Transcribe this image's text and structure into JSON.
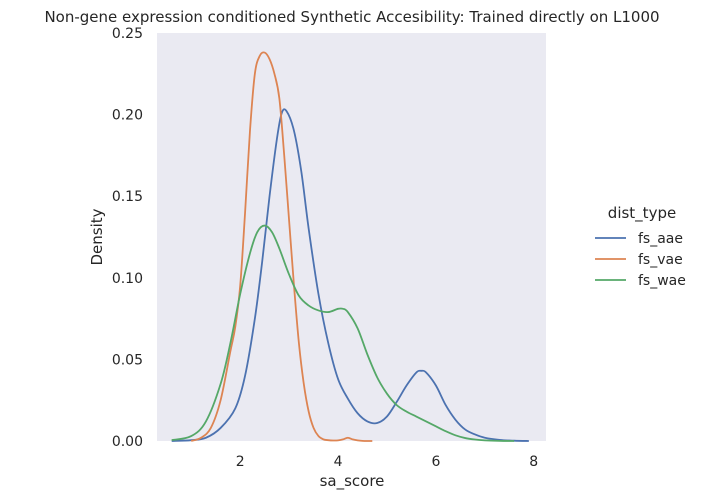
{
  "chart_data": {
    "type": "line",
    "title": "Non-gene expression conditioned Synthetic Accesibility: Trained directly on L1000",
    "xlabel": "sa_score",
    "ylabel": "Density",
    "xlim": [
      0.3,
      8.25
    ],
    "ylim": [
      0.0,
      0.25
    ],
    "xticks": [
      2,
      4,
      6,
      8
    ],
    "yticks": [
      0.0,
      0.05,
      0.1,
      0.15,
      0.2,
      0.25
    ],
    "ytick_labels": [
      "0.00",
      "0.05",
      "0.10",
      "0.15",
      "0.20",
      "0.25"
    ],
    "grid": false,
    "background": "#eaeaf2",
    "legend": {
      "title": "dist_type",
      "placement": "right-outside"
    },
    "series": [
      {
        "name": "fs_aae",
        "color": "#4c72b0",
        "x": [
          0.6,
          1.0,
          1.3,
          1.6,
          1.9,
          2.1,
          2.3,
          2.45,
          2.6,
          2.75,
          2.85,
          2.95,
          3.1,
          3.25,
          3.4,
          3.6,
          3.8,
          4.0,
          4.2,
          4.4,
          4.6,
          4.8,
          5.0,
          5.2,
          5.4,
          5.6,
          5.7,
          5.8,
          6.0,
          6.2,
          6.4,
          6.6,
          6.8,
          7.0,
          7.3,
          7.6,
          7.9
        ],
        "y": [
          0.0,
          0.0005,
          0.002,
          0.008,
          0.02,
          0.04,
          0.075,
          0.11,
          0.15,
          0.185,
          0.201,
          0.202,
          0.19,
          0.165,
          0.13,
          0.09,
          0.06,
          0.038,
          0.026,
          0.017,
          0.012,
          0.011,
          0.015,
          0.024,
          0.034,
          0.042,
          0.043,
          0.042,
          0.034,
          0.022,
          0.013,
          0.007,
          0.004,
          0.002,
          0.0007,
          0.0002,
          0.0
        ]
      },
      {
        "name": "fs_vae",
        "color": "#dd8452",
        "x": [
          1.0,
          1.2,
          1.4,
          1.6,
          1.8,
          1.9,
          2.0,
          2.1,
          2.2,
          2.3,
          2.4,
          2.5,
          2.6,
          2.7,
          2.8,
          2.9,
          3.0,
          3.1,
          3.2,
          3.3,
          3.4,
          3.5,
          3.6,
          3.7,
          3.8,
          3.9,
          4.0,
          4.1,
          4.2,
          4.3,
          4.4,
          4.5,
          4.6,
          4.7
        ],
        "y": [
          0.0,
          0.002,
          0.008,
          0.025,
          0.055,
          0.07,
          0.095,
          0.14,
          0.19,
          0.225,
          0.236,
          0.238,
          0.234,
          0.225,
          0.21,
          0.175,
          0.135,
          0.095,
          0.06,
          0.035,
          0.018,
          0.008,
          0.003,
          0.001,
          0.0005,
          0.0003,
          0.0004,
          0.001,
          0.002,
          0.001,
          0.0004,
          0.0001,
          0.0,
          0.0
        ]
      },
      {
        "name": "fs_wae",
        "color": "#55a868",
        "x": [
          0.6,
          1.0,
          1.3,
          1.6,
          1.8,
          2.0,
          2.2,
          2.35,
          2.5,
          2.65,
          2.8,
          3.0,
          3.2,
          3.4,
          3.6,
          3.8,
          4.0,
          4.1,
          4.2,
          4.4,
          4.6,
          4.8,
          5.0,
          5.2,
          5.4,
          5.6,
          5.8,
          6.0,
          6.2,
          6.4,
          6.6,
          6.8,
          7.0,
          7.3,
          7.6
        ],
        "y": [
          0.0005,
          0.003,
          0.012,
          0.035,
          0.06,
          0.09,
          0.115,
          0.128,
          0.132,
          0.128,
          0.118,
          0.102,
          0.089,
          0.083,
          0.08,
          0.079,
          0.081,
          0.081,
          0.079,
          0.069,
          0.053,
          0.039,
          0.029,
          0.022,
          0.018,
          0.015,
          0.012,
          0.009,
          0.006,
          0.0035,
          0.0018,
          0.0009,
          0.0004,
          0.0001,
          0.0
        ]
      }
    ]
  }
}
